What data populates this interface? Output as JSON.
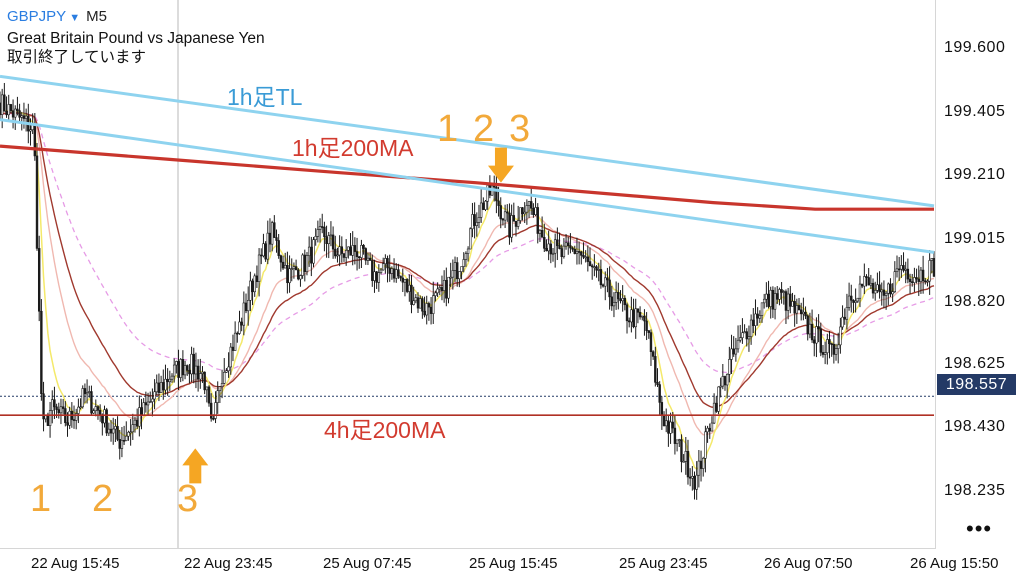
{
  "header": {
    "symbol": "GBPJPY",
    "caret": "▼",
    "timeframe": "M5",
    "description": "Great Britain Pound vs Japanese Yen",
    "status": "取引終了しています"
  },
  "price_axis": {
    "labels": [
      "199.600",
      "199.405",
      "199.210",
      "199.015",
      "198.820",
      "198.625",
      "198.430",
      "198.235"
    ],
    "current_price": "198.557"
  },
  "time_axis": {
    "labels": [
      "22 Aug 15:45",
      "22 Aug 23:45",
      "25 Aug 07:45",
      "25 Aug 15:45",
      "25 Aug 23:45",
      "26 Aug 07:50",
      "26 Aug 15:50"
    ]
  },
  "annotations": {
    "tl_label": "1h足TL",
    "ma1h_label": "1h足200MA",
    "ma4h_label": "4h足200MA",
    "left_numbers": [
      "1",
      "2",
      "3"
    ],
    "top_numbers": [
      "1",
      "2",
      "3"
    ]
  },
  "more_menu": "•••",
  "colors": {
    "trendline": "#8ed3ef",
    "ma_1h": "#c8352c",
    "ma_4h": "#b03025",
    "ma_brown": "#a0392e",
    "ma_yellow": "#f4e96a",
    "ma_pink": "#f0b8b0",
    "ma_dashed": "#e69be6",
    "arrow": "#f5a623",
    "candles": "#1a1a1a",
    "price_badge": "#243a66",
    "symbol": "#2a7de1"
  },
  "chart_data": {
    "type": "candlestick",
    "symbol": "GBPJPY",
    "timeframe": "M5",
    "y_range": [
      198.1,
      199.75
    ],
    "current_price": 198.557,
    "close_path": [
      [
        0,
        199.44
      ],
      [
        2,
        199.4
      ],
      [
        4,
        199.36
      ],
      [
        5,
        198.45
      ],
      [
        6,
        198.52
      ],
      [
        8,
        198.48
      ],
      [
        10,
        198.56
      ],
      [
        12,
        198.5
      ],
      [
        14,
        198.42
      ],
      [
        16,
        198.48
      ],
      [
        18,
        198.55
      ],
      [
        20,
        198.62
      ],
      [
        22,
        198.66
      ],
      [
        24,
        198.62
      ],
      [
        25,
        198.44
      ],
      [
        26,
        198.62
      ],
      [
        28,
        198.75
      ],
      [
        30,
        198.92
      ],
      [
        32,
        199.05
      ],
      [
        34,
        198.92
      ],
      [
        36,
        198.96
      ],
      [
        38,
        199.05
      ],
      [
        40,
        198.98
      ],
      [
        42,
        199.0
      ],
      [
        44,
        198.92
      ],
      [
        46,
        198.95
      ],
      [
        48,
        198.88
      ],
      [
        50,
        198.82
      ],
      [
        52,
        198.86
      ],
      [
        54,
        198.95
      ],
      [
        56,
        199.1
      ],
      [
        58,
        199.18
      ],
      [
        60,
        199.06
      ],
      [
        62,
        199.15
      ],
      [
        64,
        199.04
      ],
      [
        66,
        198.98
      ],
      [
        68,
        199.0
      ],
      [
        70,
        198.92
      ],
      [
        72,
        198.86
      ],
      [
        74,
        198.8
      ],
      [
        76,
        198.78
      ],
      [
        78,
        198.5
      ],
      [
        80,
        198.4
      ],
      [
        82,
        198.3
      ],
      [
        84,
        198.52
      ],
      [
        86,
        198.66
      ],
      [
        88,
        198.76
      ],
      [
        90,
        198.84
      ],
      [
        92,
        198.86
      ],
      [
        94,
        198.8
      ],
      [
        96,
        198.74
      ],
      [
        98,
        198.68
      ],
      [
        100,
        198.86
      ],
      [
        102,
        198.9
      ],
      [
        104,
        198.84
      ],
      [
        106,
        198.95
      ],
      [
        108,
        198.92
      ],
      [
        110,
        198.95
      ]
    ],
    "lines": {
      "trendline_upper": [
        [
          0,
          199.52
        ],
        [
          110,
          199.13
        ]
      ],
      "trendline_lower": [
        [
          0,
          199.39
        ],
        [
          110,
          198.99
        ]
      ],
      "ma_1h_200": [
        [
          0,
          199.31
        ],
        [
          20,
          199.27
        ],
        [
          40,
          199.23
        ],
        [
          56,
          199.2
        ],
        [
          70,
          199.17
        ],
        [
          84,
          199.14
        ],
        [
          96,
          199.12
        ],
        [
          110,
          199.12
        ]
      ],
      "ma_4h_200": [
        [
          0,
          198.5
        ],
        [
          110,
          198.5
        ]
      ]
    },
    "markers": [
      {
        "type": "arrow-up",
        "x": 23,
        "price": 198.4
      },
      {
        "type": "arrow-down",
        "x": 59,
        "price": 199.2
      }
    ]
  }
}
